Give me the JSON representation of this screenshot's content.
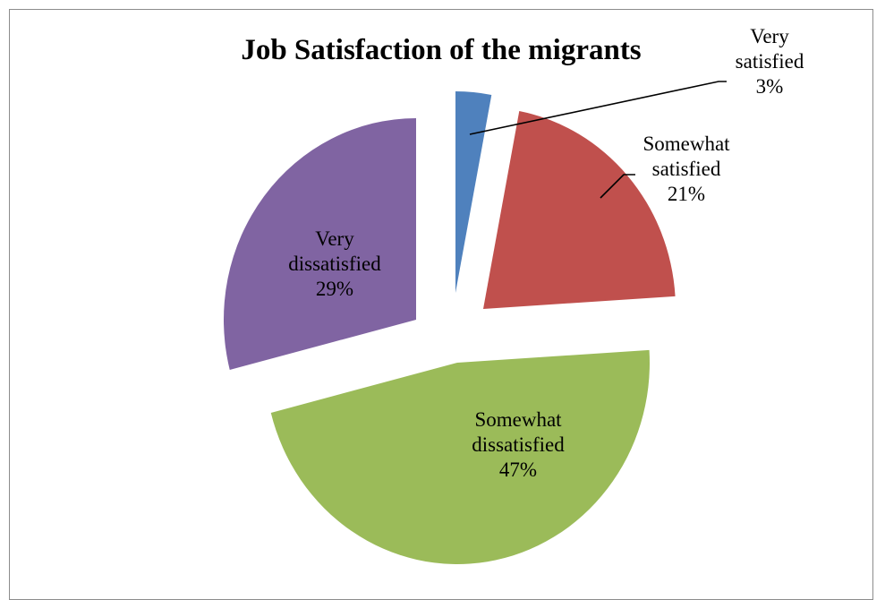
{
  "chart_data": {
    "type": "pie",
    "title": "Job Satisfaction of the migrants",
    "exploded": true,
    "slices": [
      {
        "name": "Very satisfied",
        "label_lines": [
          "Very",
          "satisfied",
          "3%"
        ],
        "value": 3,
        "color": "#4f81bd"
      },
      {
        "name": "Somewhat satisfied",
        "label_lines": [
          "Somewhat",
          "satisfied",
          "21%"
        ],
        "value": 21,
        "color": "#c0504d"
      },
      {
        "name": "Somewhat dissatisfied",
        "label_lines": [
          "Somewhat",
          "dissatisfied",
          "47%"
        ],
        "value": 47,
        "color": "#9bbb59"
      },
      {
        "name": "Very dissatisfied",
        "label_lines": [
          "Very",
          "dissatisfied",
          "29%"
        ],
        "value": 29,
        "color": "#8064a2"
      }
    ]
  }
}
